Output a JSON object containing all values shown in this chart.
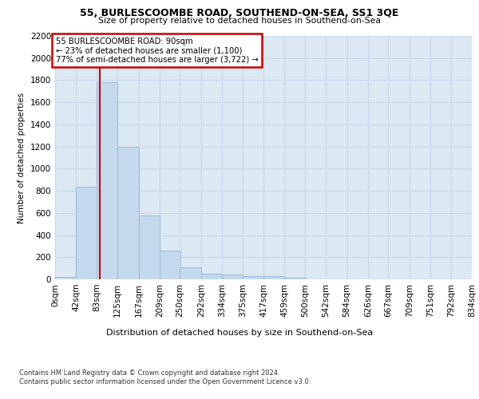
{
  "title1": "55, BURLESCOOMBE ROAD, SOUTHEND-ON-SEA, SS1 3QE",
  "title2": "Size of property relative to detached houses in Southend-on-Sea",
  "xlabel": "Distribution of detached houses by size in Southend-on-Sea",
  "ylabel": "Number of detached properties",
  "footnote1": "Contains HM Land Registry data © Crown copyright and database right 2024.",
  "footnote2": "Contains public sector information licensed under the Open Government Licence v3.0.",
  "annotation_line1": "55 BURLESCOOMBE ROAD: 90sqm",
  "annotation_line2": "← 23% of detached houses are smaller (1,100)",
  "annotation_line3": "77% of semi-detached houses are larger (3,722) →",
  "property_size": 90,
  "vline_color": "#cc0000",
  "bar_color": "#c5d9ed",
  "bar_edge_color": "#90b8d8",
  "annotation_box_edgecolor": "#cc0000",
  "grid_color": "#c8d8e8",
  "bg_color": "#dce8f2",
  "bins": [
    0,
    42,
    83,
    125,
    167,
    209,
    250,
    292,
    334,
    375,
    417,
    459,
    500,
    542,
    584,
    626,
    667,
    709,
    751,
    792,
    834
  ],
  "bin_labels": [
    "0sqm",
    "42sqm",
    "83sqm",
    "125sqm",
    "167sqm",
    "209sqm",
    "250sqm",
    "292sqm",
    "334sqm",
    "375sqm",
    "417sqm",
    "459sqm",
    "500sqm",
    "542sqm",
    "584sqm",
    "626sqm",
    "667sqm",
    "709sqm",
    "751sqm",
    "792sqm",
    "834sqm"
  ],
  "bar_heights": [
    25,
    840,
    1780,
    1200,
    575,
    260,
    110,
    50,
    45,
    30,
    30,
    15,
    0,
    0,
    0,
    0,
    0,
    0,
    0,
    0
  ],
  "ylim": [
    0,
    2200
  ],
  "yticks": [
    0,
    200,
    400,
    600,
    800,
    1000,
    1200,
    1400,
    1600,
    1800,
    2000,
    2200
  ]
}
